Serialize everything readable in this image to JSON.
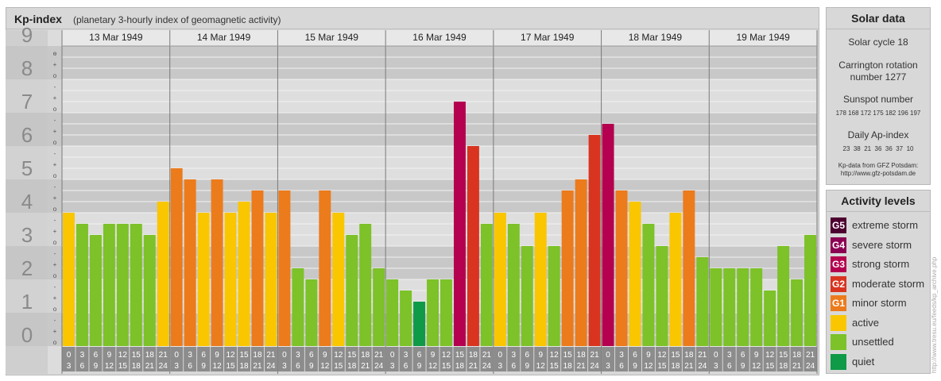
{
  "header": {
    "title": "Kp-index",
    "subtitle": "(planetary 3-hourly index of geomagnetic activity)"
  },
  "colors": {
    "quiet": "#0f9a47",
    "unsettled": "#7cc228",
    "active": "#f9c600",
    "minor_storm": "#ec7b1c",
    "moderate_storm": "#d93420",
    "strong_storm": "#b4004f",
    "severe_storm": "#8b0052",
    "extreme_storm": "#4d0030"
  },
  "chart_data": {
    "type": "bar",
    "title": "Kp-index",
    "ylim": [
      0,
      9
    ],
    "y_ticks": [
      "0",
      "1",
      "2",
      "3",
      "4",
      "5",
      "6",
      "7",
      "8",
      "9"
    ],
    "minor_marks": [
      "o",
      "+",
      "-"
    ],
    "days": [
      "13 Mar 1949",
      "14 Mar 1949",
      "15 Mar 1949",
      "16 Mar 1949",
      "17 Mar 1949",
      "18 Mar 1949",
      "19 Mar 1949"
    ],
    "interval_labels": [
      [
        "0",
        "3"
      ],
      [
        "3",
        "6"
      ],
      [
        "6",
        "9"
      ],
      [
        "9",
        "12"
      ],
      [
        "12",
        "15"
      ],
      [
        "15",
        "18"
      ],
      [
        "18",
        "21"
      ],
      [
        "21",
        "24"
      ]
    ],
    "values": [
      [
        4.0,
        3.667,
        3.333,
        3.667,
        3.667,
        3.667,
        3.333,
        4.333
      ],
      [
        5.333,
        5.0,
        4.0,
        5.0,
        4.0,
        4.333,
        4.667,
        4.0
      ],
      [
        4.667,
        2.333,
        2.0,
        4.667,
        4.0,
        3.333,
        3.667,
        2.333
      ],
      [
        2.0,
        1.667,
        1.333,
        2.0,
        2.0,
        7.333,
        6.0,
        3.667
      ],
      [
        4.0,
        3.667,
        3.0,
        4.0,
        3.0,
        4.667,
        5.0,
        6.333
      ],
      [
        6.667,
        4.667,
        4.333,
        3.667,
        3.0,
        4.0,
        4.667,
        2.667
      ],
      [
        2.333,
        2.333,
        2.333,
        2.333,
        1.667,
        3.0,
        2.0,
        3.333
      ]
    ]
  },
  "solar": {
    "title": "Solar data",
    "cycle": "Solar cycle 18",
    "carrington_line1": "Carrington rotation",
    "carrington_line2": "number 1277",
    "sunspot_label": "Sunspot number",
    "sunspot_values": "178 168 172 175 182 196 197",
    "ap_label": "Daily Ap-index",
    "ap_values": "23  38  21  36  36  37  10",
    "source_line1": "Kp-data from GFZ Potsdam:",
    "source_line2": "http://www.gfz-potsdam.de"
  },
  "legend": {
    "title": "Activity levels",
    "items": [
      {
        "code": "G5",
        "label": "extreme storm",
        "color": "#4d0030"
      },
      {
        "code": "G4",
        "label": "severe storm",
        "color": "#8b0052"
      },
      {
        "code": "G3",
        "label": "strong storm",
        "color": "#b4004f"
      },
      {
        "code": "G2",
        "label": "moderate storm",
        "color": "#d93420"
      },
      {
        "code": "G1",
        "label": "minor storm",
        "color": "#ec7b1c"
      },
      {
        "code": "",
        "label": "active",
        "color": "#f9c600"
      },
      {
        "code": "",
        "label": "unsettled",
        "color": "#7cc228"
      },
      {
        "code": "",
        "label": "quiet",
        "color": "#0f9a47"
      }
    ]
  },
  "credit": "http://www.tresu.eu/feeds/kp_archive.php"
}
